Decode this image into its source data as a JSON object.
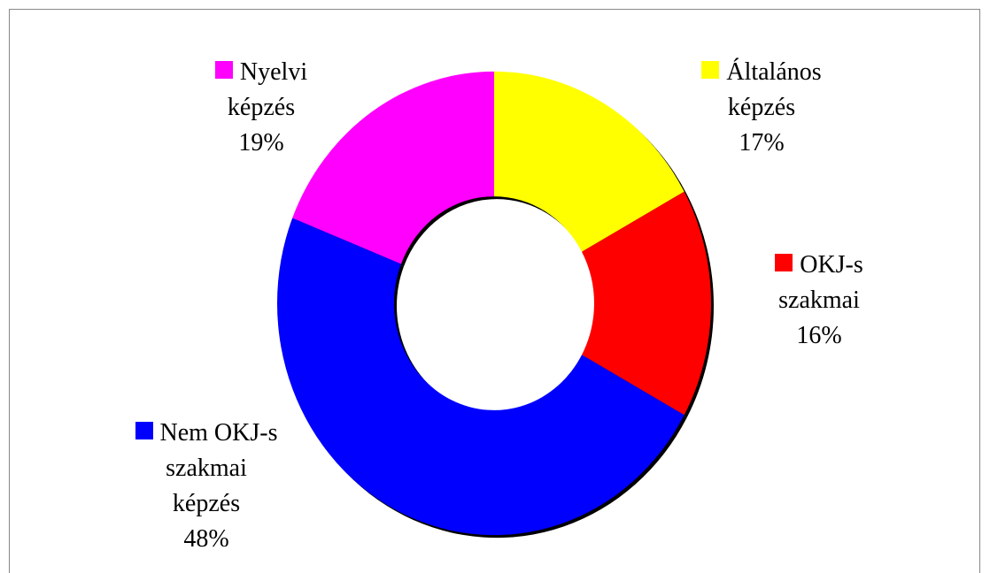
{
  "chart_data": {
    "type": "donut",
    "categories": [
      "Általános képzés",
      "OKJ-s szakmai",
      "Nem OKJ-s szakmai képzés",
      "Nyelvi képzés"
    ],
    "values": [
      17,
      16,
      48,
      19
    ],
    "value_labels": [
      "17%",
      "16%",
      "48%",
      "19%"
    ],
    "colors": [
      "#ffff00",
      "#ff0000",
      "#0000ff",
      "#ff00ff"
    ]
  }
}
